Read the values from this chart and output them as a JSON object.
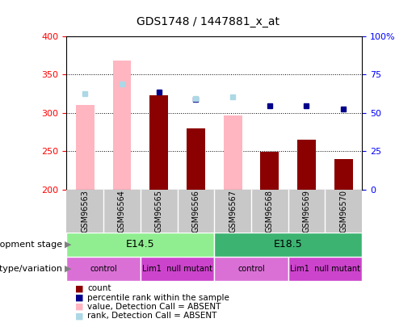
{
  "title": "GDS1748 / 1447881_x_at",
  "samples": [
    "GSM96563",
    "GSM96564",
    "GSM96565",
    "GSM96566",
    "GSM96567",
    "GSM96568",
    "GSM96569",
    "GSM96570"
  ],
  "red_bars": [
    null,
    null,
    323,
    280,
    null,
    249,
    265,
    240
  ],
  "pink_bars": [
    310,
    368,
    null,
    null,
    297,
    null,
    null,
    null
  ],
  "blue_squares_left": [
    null,
    null,
    327,
    318,
    null,
    309,
    309,
    305
  ],
  "lightblue_squares_left": [
    325,
    338,
    null,
    319,
    321,
    null,
    null,
    null
  ],
  "ylim": [
    200,
    400
  ],
  "yticks": [
    200,
    250,
    300,
    350,
    400
  ],
  "right_ylim": [
    0,
    100
  ],
  "right_yticks_vals": [
    0,
    25,
    50,
    75,
    100
  ],
  "right_yticks_labels": [
    "0",
    "25",
    "50",
    "75",
    "100%"
  ],
  "dev_stages": [
    {
      "label": "E14.5",
      "start": 0,
      "end": 4,
      "color": "#90EE90"
    },
    {
      "label": "E18.5",
      "start": 4,
      "end": 8,
      "color": "#3CB371"
    }
  ],
  "genotypes": [
    {
      "label": "control",
      "start": 0,
      "end": 2,
      "color": "#DA70D6"
    },
    {
      "label": "Lim1  null mutant",
      "start": 2,
      "end": 4,
      "color": "#CC44CC"
    },
    {
      "label": "control",
      "start": 4,
      "end": 6,
      "color": "#DA70D6"
    },
    {
      "label": "Lim1  null mutant",
      "start": 6,
      "end": 8,
      "color": "#CC44CC"
    }
  ],
  "legend_items": [
    {
      "label": "count",
      "color": "#8B0000"
    },
    {
      "label": "percentile rank within the sample",
      "color": "#00008B"
    },
    {
      "label": "value, Detection Call = ABSENT",
      "color": "#FFB6C1"
    },
    {
      "label": "rank, Detection Call = ABSENT",
      "color": "#ADD8E6"
    }
  ],
  "red_color": "#8B0000",
  "pink_color": "#FFB6C1",
  "blue_color": "#00008B",
  "lightblue_color": "#ADD8E6",
  "xtick_gray": "#C8C8C8"
}
